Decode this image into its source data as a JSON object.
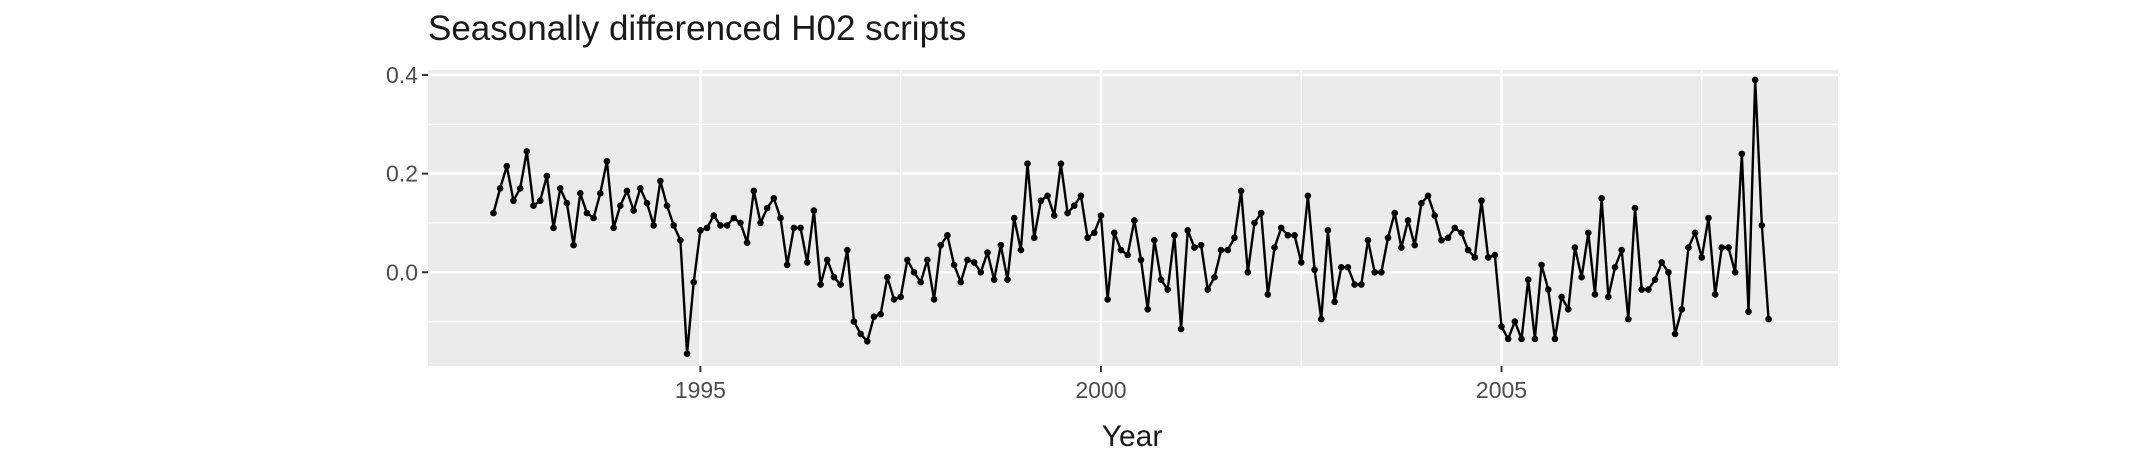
{
  "chart_data": {
    "type": "line",
    "title": "Seasonally differenced H02 scripts",
    "xlabel": "Year",
    "ylabel": "",
    "xlim": [
      1991.6,
      2009.2
    ],
    "ylim": [
      -0.19,
      0.41
    ],
    "x_ticks": [
      1995,
      2000,
      2005
    ],
    "x_tick_labels": [
      "1995",
      "2000",
      "2005"
    ],
    "x_minor_ticks": [
      1997.5,
      2002.5,
      2007.5
    ],
    "y_ticks": [
      0.0,
      0.2,
      0.4
    ],
    "y_tick_labels": [
      "0.0",
      "0.2",
      "0.4"
    ],
    "y_minor_ticks": [
      -0.1,
      0.1,
      0.3
    ],
    "grid": true,
    "legend": "none",
    "markers": true,
    "x_start": 1992.417,
    "x_step": 0.08333,
    "series": [
      {
        "values": [
          0.12,
          0.17,
          0.215,
          0.145,
          0.17,
          0.245,
          0.135,
          0.145,
          0.195,
          0.09,
          0.17,
          0.14,
          0.055,
          0.16,
          0.12,
          0.11,
          0.16,
          0.225,
          0.09,
          0.135,
          0.165,
          0.125,
          0.17,
          0.14,
          0.095,
          0.185,
          0.135,
          0.095,
          0.065,
          -0.165,
          -0.02,
          0.085,
          0.09,
          0.115,
          0.095,
          0.095,
          0.11,
          0.1,
          0.06,
          0.165,
          0.1,
          0.13,
          0.15,
          0.11,
          0.015,
          0.09,
          0.09,
          0.02,
          0.125,
          -0.025,
          0.025,
          -0.01,
          -0.025,
          0.045,
          -0.1,
          -0.125,
          -0.14,
          -0.09,
          -0.085,
          -0.01,
          -0.055,
          -0.05,
          0.025,
          0.0,
          -0.02,
          0.025,
          -0.055,
          0.055,
          0.075,
          0.015,
          -0.02,
          0.025,
          0.02,
          0.0,
          0.04,
          -0.015,
          0.055,
          -0.015,
          0.11,
          0.045,
          0.22,
          0.07,
          0.145,
          0.155,
          0.115,
          0.22,
          0.12,
          0.135,
          0.155,
          0.07,
          0.08,
          0.115,
          -0.055,
          0.08,
          0.045,
          0.035,
          0.105,
          0.025,
          -0.075,
          0.065,
          -0.015,
          -0.035,
          0.075,
          -0.115,
          0.085,
          0.05,
          0.055,
          -0.035,
          -0.01,
          0.045,
          0.045,
          0.07,
          0.165,
          0.0,
          0.1,
          0.12,
          -0.045,
          0.05,
          0.09,
          0.075,
          0.075,
          0.02,
          0.155,
          0.005,
          -0.095,
          0.085,
          -0.06,
          0.01,
          0.01,
          -0.025,
          -0.025,
          0.065,
          0.0,
          0.0,
          0.07,
          0.12,
          0.05,
          0.105,
          0.055,
          0.14,
          0.155,
          0.115,
          0.065,
          0.07,
          0.09,
          0.08,
          0.045,
          0.03,
          0.145,
          0.03,
          0.035,
          -0.11,
          -0.135,
          -0.1,
          -0.135,
          -0.015,
          -0.135,
          0.015,
          -0.035,
          -0.135,
          -0.05,
          -0.075,
          0.05,
          -0.01,
          0.08,
          -0.045,
          0.15,
          -0.05,
          0.01,
          0.045,
          -0.095,
          0.13,
          -0.035,
          -0.035,
          -0.015,
          0.02,
          0.0,
          -0.125,
          -0.075,
          0.05,
          0.08,
          0.03,
          0.11,
          -0.045,
          0.05,
          0.05,
          0.0,
          0.24,
          -0.08,
          0.39,
          0.095,
          -0.095
        ]
      }
    ],
    "colors": {
      "panel_background": "#ebebeb",
      "grid_major": "#ffffff",
      "line": "#000000",
      "tick_text": "#4d4d4d",
      "tick_mark": "#333333",
      "title_text": "#1a1a1a"
    }
  }
}
